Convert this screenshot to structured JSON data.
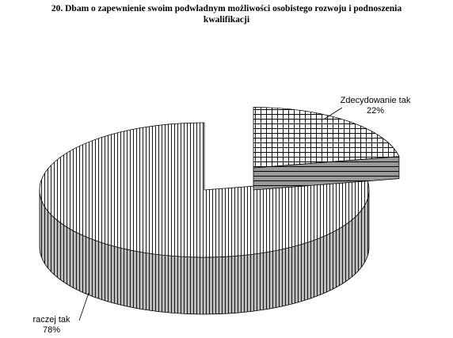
{
  "chart_data": {
    "type": "pie",
    "title": "20. Dbam o zapewnienie swoim podwładnym możliwości osobistego rozwoju i podnoszenia kwalifikacji",
    "categories": [
      "Zdecydowanie tak",
      "raczej tak"
    ],
    "values": [
      22,
      78
    ],
    "value_labels": [
      "22%",
      "78%"
    ]
  }
}
